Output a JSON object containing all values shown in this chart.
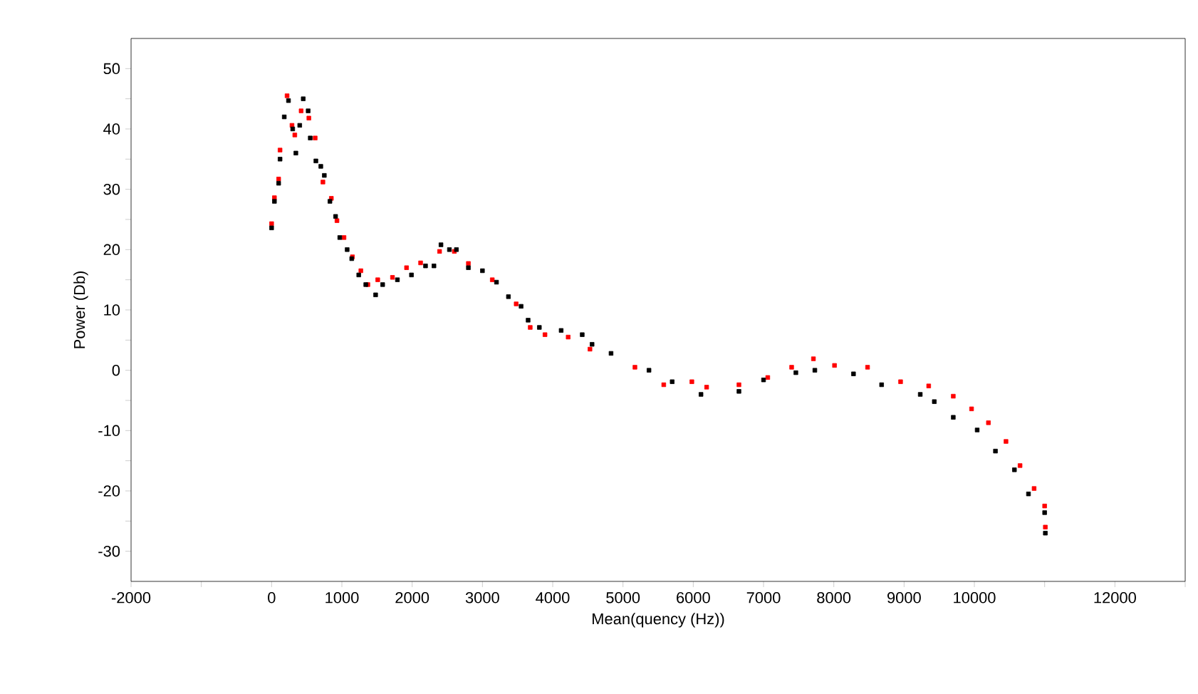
{
  "chart_data": {
    "type": "scatter",
    "xlabel": "Mean(quency (Hz))",
    "ylabel": "Power (Db)",
    "marker": "square",
    "grid": false,
    "legend": false,
    "xlim": [
      -2000,
      13000
    ],
    "ylim": [
      -35,
      55
    ],
    "xticks": [
      -2000,
      {
        "value": -1000,
        "label": null
      },
      0,
      1000,
      2000,
      3000,
      4000,
      5000,
      6000,
      7000,
      8000,
      9000,
      10000,
      {
        "value": 11000,
        "label": null
      },
      12000,
      {
        "value": 13000,
        "label": null
      }
    ],
    "yticks": [
      -30,
      {
        "value": -25,
        "label": null
      },
      -20,
      {
        "value": -15,
        "label": null
      },
      -10,
      {
        "value": -5,
        "label": null
      },
      0,
      {
        "value": 5,
        "label": null
      },
      10,
      {
        "value": 15,
        "label": null
      },
      20,
      {
        "value": 25,
        "label": null
      },
      30,
      {
        "value": 35,
        "label": null
      },
      40,
      {
        "value": 45,
        "label": null
      },
      50
    ],
    "series": [
      {
        "color": "#ff0000",
        "x": [
          0,
          40,
          100,
          120,
          220,
          290,
          330,
          420,
          530,
          620,
          640,
          730,
          850,
          930,
          1030,
          1150,
          1270,
          1370,
          1510,
          1720,
          1920,
          2120,
          2390,
          2600,
          2800,
          3140,
          3480,
          3680,
          3890,
          4220,
          4530,
          5170,
          5580,
          5980,
          6190,
          6650,
          7060,
          7400,
          7710,
          8010,
          8480,
          8950,
          9350,
          9700,
          9960,
          10200,
          10450,
          10650,
          10850,
          11000,
          11010
        ],
        "values": [
          24.3,
          28.6,
          31.7,
          36.5,
          45.5,
          40.6,
          39,
          43,
          41.8,
          38.5,
          null,
          31.2,
          28.5,
          24.8,
          22,
          18.8,
          16.5,
          14.2,
          15,
          15.4,
          17,
          17.8,
          19.7,
          19.7,
          17.7,
          15,
          11,
          7.1,
          5.9,
          5.5,
          3.5,
          0.5,
          -2.4,
          -1.9,
          -2.8,
          -2.4,
          -1.2,
          0.5,
          1.9,
          0.8,
          0.5,
          -1.9,
          -2.6,
          -4.3,
          -6.4,
          -8.7,
          -11.8,
          -15.8,
          -19.6,
          -22.5,
          -26
        ]
      },
      {
        "color": "#000000",
        "x": [
          0,
          40,
          100,
          120,
          180,
          240,
          300,
          345,
          400,
          450,
          520,
          550,
          630,
          700,
          750,
          830,
          910,
          970,
          1075,
          1140,
          1240,
          1340,
          1480,
          1580,
          1790,
          1990,
          2190,
          2310,
          2410,
          2530,
          2630,
          2800,
          3000,
          3200,
          3370,
          3550,
          3650,
          3810,
          4120,
          4420,
          4560,
          4830,
          5370,
          5700,
          6110,
          6650,
          7000,
          7460,
          7730,
          8280,
          8680,
          9230,
          9430,
          9700,
          10040,
          10300,
          10570,
          10770,
          11000,
          11010
        ],
        "values": [
          23.6,
          28,
          31,
          35,
          42,
          44.7,
          40,
          36,
          40.6,
          45,
          43,
          38.5,
          34.7,
          33.8,
          32.3,
          28,
          25.5,
          22,
          20,
          18.5,
          15.8,
          14.2,
          12.5,
          14.2,
          15,
          15.8,
          17.3,
          17.3,
          20.8,
          20,
          20,
          17,
          16.5,
          14.6,
          12.2,
          10.6,
          8.3,
          7.1,
          6.6,
          5.9,
          4.3,
          2.8,
          0,
          -1.9,
          -4,
          -3.5,
          -1.6,
          -0.4,
          0,
          -0.6,
          -2.4,
          -4,
          -5.2,
          -7.8,
          -9.9,
          -13.4,
          -16.5,
          -20.5,
          -23.6,
          -27
        ]
      }
    ]
  }
}
